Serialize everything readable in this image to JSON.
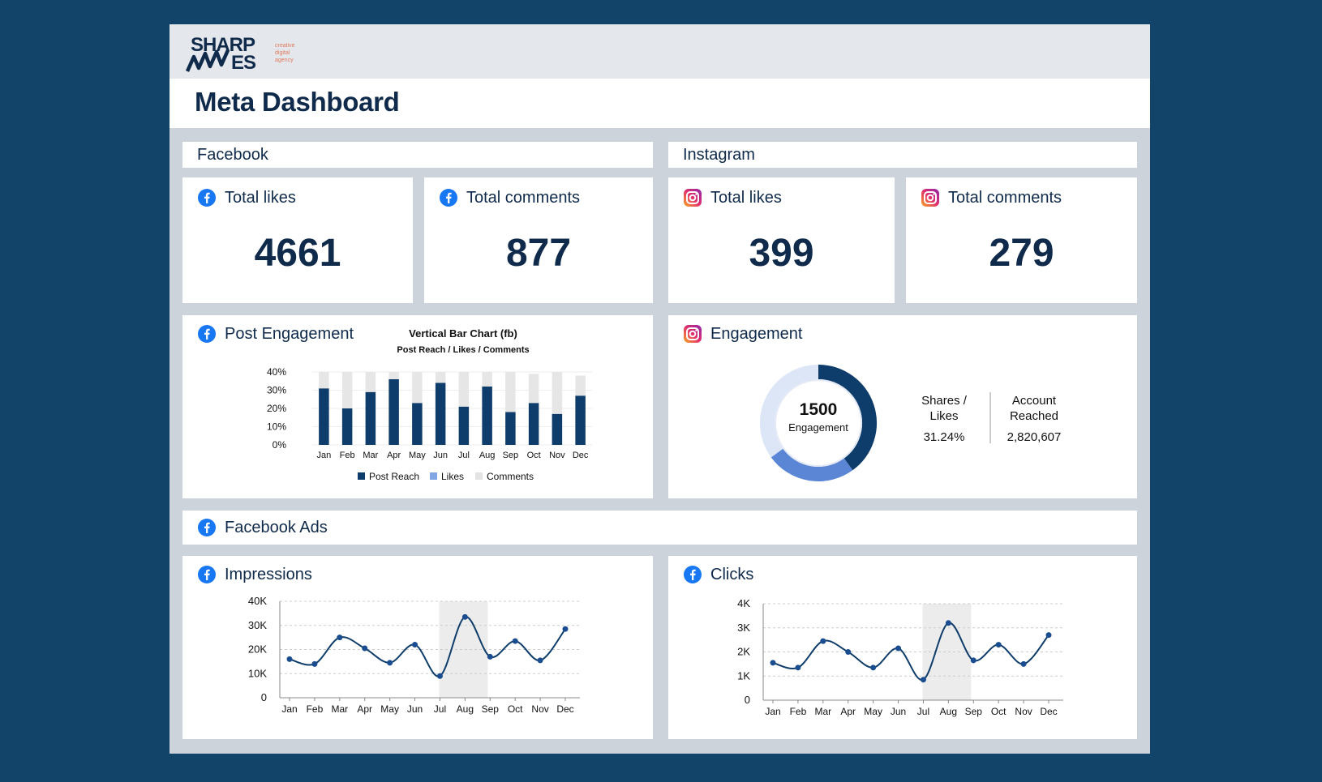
{
  "brand": {
    "logo_text": "SHARP WAVES",
    "logo_tagline": "creative digital agency"
  },
  "header": {
    "title": "Meta Dashboard"
  },
  "sections": {
    "facebook": "Facebook",
    "instagram": "Instagram",
    "facebook_ads": "Facebook Ads"
  },
  "kpis": [
    {
      "platform": "facebook",
      "label": "Total likes",
      "value": "4661"
    },
    {
      "platform": "facebook",
      "label": "Total comments",
      "value": "877"
    },
    {
      "platform": "instagram",
      "label": "Total likes",
      "value": "399"
    },
    {
      "platform": "instagram",
      "label": "Total comments",
      "value": "279"
    }
  ],
  "post_engagement": {
    "card_title": "Post Engagement"
  },
  "instagram_engagement": {
    "card_title": "Engagement",
    "donut_value": "1500",
    "donut_label": "Engagement",
    "stats": [
      {
        "label_line1": "Shares /",
        "label_line2": "Likes",
        "value": "31.24%"
      },
      {
        "label_line1": "Account",
        "label_line2": "Reached",
        "value": "2,820,607"
      }
    ]
  },
  "impressions": {
    "card_title": "Impressions"
  },
  "clicks": {
    "card_title": "Clicks"
  },
  "colors": {
    "navy": "#0f3d6b",
    "mid_blue": "#5b86d6",
    "light_blue": "#dde6f7",
    "comments_gray": "#e6e6e6",
    "highlight": "#e8e8e8",
    "facebook_blue": "#1877f2",
    "instagram_pink": "#e1306c"
  },
  "chart_data": [
    {
      "id": "fb-post-engagement",
      "type": "bar",
      "title": "Vertical Bar Chart (fb)",
      "subtitle": "Post Reach / Likes / Comments",
      "categories": [
        "Jan",
        "Feb",
        "Mar",
        "Apr",
        "May",
        "Jun",
        "Jul",
        "Aug",
        "Sep",
        "Oct",
        "Nov",
        "Dec"
      ],
      "yticks": [
        "0%",
        "10%",
        "20%",
        "30%",
        "40%"
      ],
      "ylim": [
        0,
        40
      ],
      "stacked": true,
      "series": [
        {
          "name": "Post Reach",
          "color": "#0f3d6b",
          "values": [
            31,
            20,
            29,
            36,
            23,
            34,
            21,
            32,
            18,
            23,
            17,
            27
          ]
        },
        {
          "name": "Likes",
          "color": "#7fa6e3",
          "values": [
            0,
            0,
            0,
            0,
            0,
            0,
            0,
            0,
            0,
            0,
            0,
            0
          ]
        },
        {
          "name": "Comments",
          "color": "#e6e6e6",
          "values": [
            9,
            20,
            11,
            4,
            17,
            6,
            19,
            8,
            22,
            16,
            23,
            11
          ]
        }
      ],
      "legend": "bottom"
    },
    {
      "id": "ig-engagement-donut",
      "type": "pie",
      "center_value": "1500",
      "center_label": "Engagement",
      "slices": [
        {
          "value": 40,
          "color": "#0f3d6b"
        },
        {
          "value": 25,
          "color": "#5b86d6"
        },
        {
          "value": 35,
          "color": "#dde6f7"
        }
      ]
    },
    {
      "id": "impressions",
      "type": "line",
      "categories": [
        "Jan",
        "Feb",
        "Mar",
        "Apr",
        "May",
        "Jun",
        "Jul",
        "Aug",
        "Sep",
        "Oct",
        "Nov",
        "Dec"
      ],
      "yticks": [
        "0",
        "10K",
        "20K",
        "30K",
        "40K"
      ],
      "ylim": [
        0,
        40000
      ],
      "highlight": [
        "Jul",
        "Aug"
      ],
      "series": [
        {
          "values": [
            16000,
            14000,
            25000,
            20500,
            14500,
            22000,
            9000,
            33500,
            17000,
            23500,
            15500,
            28500
          ]
        }
      ]
    },
    {
      "id": "clicks",
      "type": "line",
      "categories": [
        "Jan",
        "Feb",
        "Mar",
        "Apr",
        "May",
        "Jun",
        "Jul",
        "Aug",
        "Sep",
        "Oct",
        "Nov",
        "Dec"
      ],
      "yticks": [
        "0",
        "1K",
        "2K",
        "3K",
        "4K"
      ],
      "ylim": [
        0,
        4000
      ],
      "highlight": [
        "Jul",
        "Aug"
      ],
      "series": [
        {
          "values": [
            1550,
            1350,
            2450,
            2000,
            1350,
            2150,
            850,
            3200,
            1650,
            2300,
            1500,
            2700
          ]
        }
      ]
    }
  ]
}
